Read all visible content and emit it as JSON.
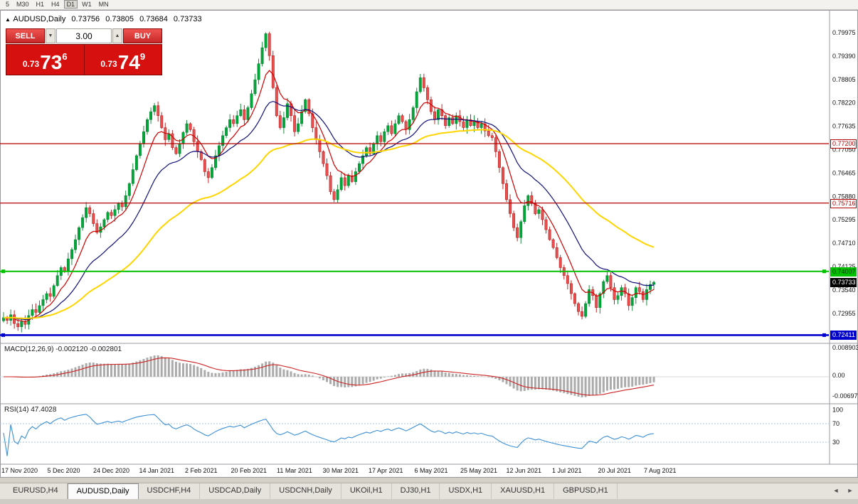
{
  "toolbar": {
    "timeframes": [
      "5",
      "M30",
      "H1",
      "H4",
      "D1",
      "W1",
      "MN"
    ],
    "active": "D1"
  },
  "chart_header": {
    "marker": "▲",
    "symbol_period": "AUDUSD,Daily",
    "open": "0.73756",
    "high": "0.73805",
    "low": "0.73684",
    "close": "0.73733"
  },
  "trade_panel": {
    "sell_label": "SELL",
    "buy_label": "BUY",
    "volume": "3.00",
    "volume_down_glyph": "▼",
    "volume_up_glyph": "▲",
    "sell_price": {
      "prefix": "0.73",
      "big": "73",
      "sup": "6"
    },
    "buy_price": {
      "prefix": "0.73",
      "big": "74",
      "sup": "9"
    }
  },
  "axes": {
    "price_labels": [
      "0.79975",
      "0.79390",
      "0.78805",
      "0.78220",
      "0.77635",
      "0.77050",
      "0.76465",
      "0.75880",
      "0.75295",
      "0.74710",
      "0.74125",
      "0.73540",
      "0.72955"
    ],
    "date_labels": [
      "17 Nov 2020",
      "5 Dec 2020",
      "24 Dec 2020",
      "14 Jan 2021",
      "2 Feb 2021",
      "20 Feb 2021",
      "11 Mar 2021",
      "30 Mar 2021",
      "17 Apr 2021",
      "6 May 2021",
      "25 May 2021",
      "12 Jun 2021",
      "1 Jul 2021",
      "20 Jul 2021",
      "7 Aug 2021"
    ],
    "macd_labels": [
      {
        "text": "0.008903"
      },
      {
        "text": "0.00"
      },
      {
        "text": "-0.00697"
      }
    ],
    "rsi_labels": [
      {
        "text": "100",
        "value": 100
      },
      {
        "text": "70",
        "value": 70
      },
      {
        "text": "30",
        "value": 30
      }
    ]
  },
  "levels": [
    {
      "price": 0.772,
      "text": "0.77200",
      "color": "#b20000",
      "style": "outline",
      "width": 1.2,
      "markers": false
    },
    {
      "price": 0.75716,
      "text": "0.75716",
      "color": "#b20000",
      "style": "outline",
      "width": 1.2,
      "markers": false
    },
    {
      "price": 0.74007,
      "text": "0.74007",
      "color": "#00c000",
      "style": "fill",
      "text_color": "#003300",
      "width": 2,
      "markers": true
    },
    {
      "price": 0.72411,
      "text": "0.72411",
      "color": "#0000cd",
      "style": "fill",
      "text_color": "#ffffff",
      "width": 2.6,
      "markers": true
    }
  ],
  "current_price": {
    "price": 0.73733,
    "text": "0.73733"
  },
  "indicators": {
    "macd": {
      "label": "MACD(12,26,9) -0.002120 -0.002801",
      "fast": 12,
      "slow": 26,
      "signal": 9
    },
    "rsi": {
      "label": "RSI(14) 47.4028",
      "period": 14,
      "levels": [
        70,
        30
      ]
    }
  },
  "chart_data": {
    "type": "candlestick",
    "title": "AUDUSD,Daily",
    "symbol": "AUDUSD",
    "timeframe": "Daily",
    "x_range": [
      "17 Nov 2020",
      "10 Aug 2021"
    ],
    "y_range": [
      0.72241,
      0.80508
    ],
    "closes": [
      0.7285,
      0.7278,
      0.7292,
      0.727,
      0.7262,
      0.7275,
      0.7268,
      0.729,
      0.7305,
      0.7298,
      0.7315,
      0.733,
      0.7345,
      0.7338,
      0.7365,
      0.739,
      0.741,
      0.74,
      0.7432,
      0.7455,
      0.748,
      0.751,
      0.7535,
      0.756,
      0.7545,
      0.752,
      0.7498,
      0.7512,
      0.753,
      0.7548,
      0.754,
      0.7555,
      0.757,
      0.7562,
      0.759,
      0.762,
      0.7655,
      0.769,
      0.772,
      0.775,
      0.778,
      0.78,
      0.7815,
      0.779,
      0.776,
      0.773,
      0.7745,
      0.771,
      0.7695,
      0.772,
      0.7748,
      0.777,
      0.7755,
      0.7725,
      0.77,
      0.768,
      0.765,
      0.7635,
      0.766,
      0.769,
      0.7715,
      0.774,
      0.776,
      0.778,
      0.777,
      0.779,
      0.7805,
      0.778,
      0.781,
      0.7845,
      0.788,
      0.792,
      0.796,
      0.7995,
      0.794,
      0.786,
      0.779,
      0.776,
      0.7785,
      0.782,
      0.779,
      0.775,
      0.777,
      0.78,
      0.783,
      0.7795,
      0.776,
      0.773,
      0.77,
      0.767,
      0.764,
      0.76,
      0.758,
      0.7605,
      0.7635,
      0.7615,
      0.764,
      0.7625,
      0.765,
      0.767,
      0.769,
      0.771,
      0.7695,
      0.772,
      0.774,
      0.7725,
      0.775,
      0.7765,
      0.7745,
      0.777,
      0.779,
      0.7775,
      0.7755,
      0.778,
      0.781,
      0.785,
      0.7885,
      0.786,
      0.783,
      0.78,
      0.778,
      0.7805,
      0.779,
      0.7765,
      0.7785,
      0.777,
      0.779,
      0.7775,
      0.776,
      0.778,
      0.7765,
      0.7775,
      0.776,
      0.777,
      0.7752,
      0.774,
      0.7735,
      0.77,
      0.766,
      0.762,
      0.758,
      0.7545,
      0.751,
      0.7485,
      0.7525,
      0.7565,
      0.759,
      0.757,
      0.7545,
      0.7555,
      0.753,
      0.7505,
      0.748,
      0.746,
      0.7435,
      0.741,
      0.739,
      0.737,
      0.7345,
      0.732,
      0.73,
      0.7288,
      0.732,
      0.7355,
      0.734,
      0.731,
      0.7345,
      0.7375,
      0.739,
      0.736,
      0.733,
      0.734,
      0.736,
      0.7345,
      0.7315,
      0.7335,
      0.736,
      0.735,
      0.733,
      0.7355,
      0.7368,
      0.73733
    ],
    "moving_averages": [
      {
        "period": 8,
        "color": "#d00000"
      },
      {
        "period": 21,
        "color": "#10107a"
      },
      {
        "period": 55,
        "color": "#ffd500"
      }
    ]
  },
  "tabs": {
    "items": [
      "EURUSD,H4",
      "AUDUSD,Daily",
      "USDCHF,H4",
      "USDCAD,Daily",
      "USDCNH,Daily",
      "UKOil,H1",
      "DJ30,H1",
      "USDX,H1",
      "XAUUSD,H1",
      "GBPUSD,H1"
    ],
    "active_index": 1,
    "scroll_left": "◄",
    "scroll_right": "►"
  },
  "colors": {
    "up": "#00a83a",
    "up_stroke": "#067d2c",
    "down": "#e85050",
    "down_stroke": "#b01212",
    "macd_bar": "#ababab",
    "macd_signal": "#cc2222",
    "rsi_line": "#3b8fd4"
  }
}
